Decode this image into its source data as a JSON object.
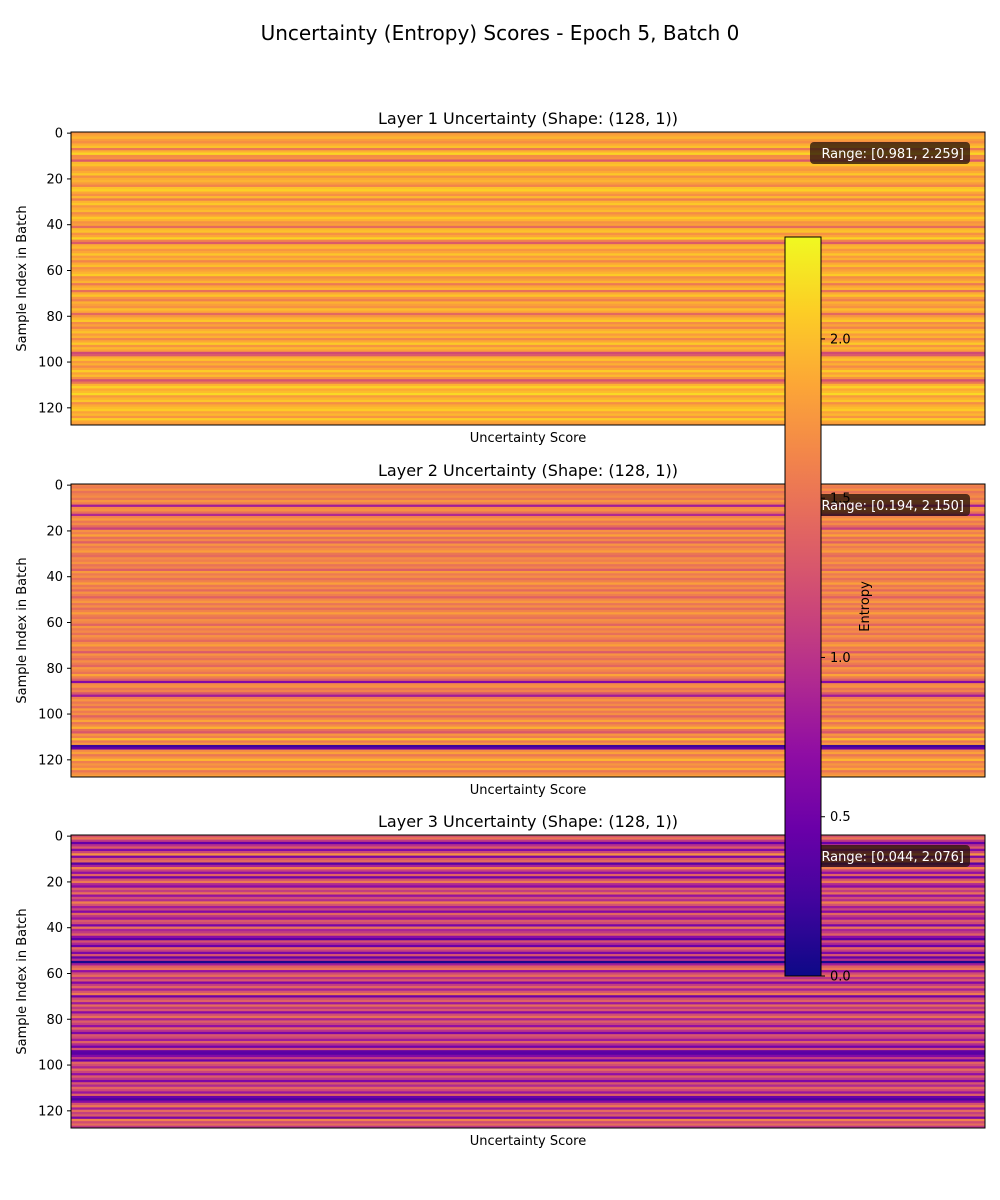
{
  "chart_data": {
    "type": "heatmap",
    "title": "Uncertainty (Entropy) Scores - Epoch 5, Batch 0",
    "colormap": "plasma",
    "colorbar": {
      "label": "Entropy",
      "vmin": 0.0,
      "vmax": 2.32,
      "ticks": [
        0.0,
        0.5,
        1.0,
        1.5,
        2.0
      ],
      "tick_labels": [
        "0.0",
        "0.5",
        "1.0",
        "1.5",
        "2.0"
      ]
    },
    "panels": [
      {
        "title": "Layer 1 Uncertainty (Shape: (128, 1))",
        "xlabel": "Uncertainty Score",
        "ylabel": "Sample Index in Batch",
        "ytick_values": [
          0,
          20,
          40,
          60,
          80,
          100,
          120
        ],
        "ytick_labels": [
          "0",
          "20",
          "40",
          "60",
          "80",
          "100",
          "120"
        ],
        "range_text": "Range: [0.981, 2.259]",
        "range": [
          0.981,
          2.259
        ],
        "n_rows": 128,
        "values": [
          1.74,
          1.85,
          1.95,
          1.79,
          1.7,
          1.89,
          2.01,
          1.53,
          1.92,
          2.12,
          1.67,
          1.72,
          1.31,
          1.96,
          2.02,
          1.81,
          1.75,
          1.88,
          2.05,
          1.69,
          1.88,
          1.93,
          1.78,
          1.62,
          2.01,
          2.1,
          1.86,
          1.71,
          1.96,
          1.57,
          1.93,
          2.05,
          1.75,
          1.89,
          1.98,
          1.68,
          1.83,
          2.06,
          1.93,
          1.72,
          1.8,
          1.44,
          1.95,
          2.02,
          1.71,
          1.85,
          2.12,
          1.61,
          1.33,
          1.9,
          1.97,
          1.74,
          1.85,
          2.04,
          1.78,
          1.91,
          1.63,
          1.87,
          2.0,
          1.71,
          1.82,
          1.93,
          2.07,
          1.68,
          1.79,
          1.94,
          1.55,
          1.85,
          1.97,
          1.47,
          1.88,
          2.03,
          1.76,
          1.59,
          1.92,
          1.81,
          1.72,
          1.99,
          1.86,
          1.42,
          1.75,
          1.93,
          2.05,
          1.68,
          1.83,
          1.61,
          1.9,
          2.02,
          1.78,
          1.92,
          1.64,
          1.87,
          2.06,
          1.73,
          1.95,
          1.8,
          1.19,
          1.31,
          1.88,
          2.01,
          1.76,
          1.91,
          1.66,
          1.85,
          2.09,
          1.82,
          1.97,
          1.72,
          1.25,
          1.53,
          1.93,
          2.11,
          1.86,
          1.98,
          2.15,
          1.77,
          1.92,
          2.04,
          1.69,
          1.88,
          1.99,
          2.07,
          1.83,
          1.95,
          1.73,
          2.09,
          1.86,
          1.79
        ]
      },
      {
        "title": "Layer 2 Uncertainty (Shape: (128, 1))",
        "xlabel": "Uncertainty Score",
        "ylabel": "Sample Index in Batch",
        "ytick_values": [
          0,
          20,
          40,
          60,
          80,
          100,
          120
        ],
        "ytick_labels": [
          "0",
          "20",
          "40",
          "60",
          "80",
          "100",
          "120"
        ],
        "range_text": "Range: [0.194, 2.150]",
        "range": [
          0.194,
          2.15
        ],
        "n_rows": 128,
        "values": [
          1.62,
          1.55,
          1.71,
          1.49,
          1.6,
          1.68,
          1.52,
          1.75,
          1.58,
          0.82,
          1.66,
          1.71,
          1.48,
          0.92,
          1.63,
          1.78,
          1.54,
          1.67,
          1.43,
          1.12,
          1.71,
          1.59,
          1.83,
          1.47,
          1.64,
          1.36,
          1.74,
          1.55,
          1.67,
          1.8,
          1.52,
          1.44,
          1.68,
          1.59,
          1.73,
          1.5,
          1.62,
          1.34,
          1.77,
          1.56,
          1.69,
          1.47,
          1.6,
          1.81,
          1.54,
          1.66,
          1.43,
          1.72,
          1.58,
          1.37,
          1.64,
          1.76,
          1.52,
          1.69,
          1.45,
          1.61,
          1.8,
          1.57,
          1.49,
          1.7,
          1.63,
          1.39,
          1.75,
          1.55,
          1.66,
          1.48,
          1.72,
          1.59,
          1.43,
          1.68,
          1.81,
          1.54,
          1.62,
          1.31,
          1.73,
          1.58,
          1.47,
          1.69,
          1.55,
          1.41,
          1.76,
          1.63,
          1.5,
          1.84,
          1.57,
          1.35,
          0.63,
          1.66,
          1.72,
          1.49,
          1.61,
          1.28,
          0.81,
          1.58,
          1.74,
          1.53,
          1.67,
          1.44,
          1.79,
          1.56,
          1.7,
          1.38,
          1.63,
          1.85,
          1.51,
          1.68,
          1.92,
          1.47,
          1.29,
          1.75,
          1.6,
          1.99,
          1.55,
          1.77,
          0.21,
          0.44,
          1.66,
          1.82,
          1.53,
          1.71,
          1.95,
          1.58,
          1.74,
          1.63,
          1.87,
          1.52,
          1.69,
          1.8
        ]
      },
      {
        "title": "Layer 3 Uncertainty (Shape: (128, 1))",
        "xlabel": "Uncertainty Score",
        "ylabel": "Sample Index in Batch",
        "ytick_values": [
          0,
          20,
          40,
          60,
          80,
          100,
          120
        ],
        "ytick_labels": [
          "0",
          "20",
          "40",
          "60",
          "80",
          "100",
          "120"
        ],
        "range_text": "Range: [0.044, 2.076]",
        "range": [
          0.044,
          2.076
        ],
        "n_rows": 128,
        "values": [
          1.25,
          1.52,
          1.05,
          0.44,
          0.98,
          1.31,
          0.62,
          1.15,
          1.71,
          0.57,
          1.28,
          1.45,
          0.36,
          0.88,
          1.62,
          1.12,
          0.71,
          1.39,
          0.52,
          1.21,
          1.55,
          0.93,
          0.67,
          1.33,
          1.08,
          1.47,
          0.74,
          1.22,
          0.95,
          1.58,
          1.26,
          0.81,
          1.14,
          0.63,
          1.41,
          1.02,
          0.77,
          1.3,
          1.18,
          0.55,
          1.49,
          0.89,
          1.06,
          1.36,
          0.69,
          0.38,
          1.24,
          0.91,
          0.47,
          1.43,
          1.11,
          0.58,
          1.27,
          0.44,
          0.97,
          0.06,
          0.83,
          1.35,
          1.52,
          0.72,
          1.19,
          1.44,
          0.98,
          1.3,
          0.61,
          1.09,
          1.4,
          0.84,
          1.26,
          1.55,
          0.49,
          1.17,
          1.37,
          0.79,
          1.45,
          1.04,
          1.29,
          0.66,
          1.21,
          1.48,
          0.87,
          1.34,
          1.12,
          0.72,
          1.42,
          1.01,
          0.58,
          1.28,
          1.16,
          0.81,
          1.37,
          0.93,
          0.52,
          1.24,
          0.41,
          0.36,
          0.62,
          1.08,
          0.47,
          1.39,
          1.21,
          0.88,
          1.46,
          1.14,
          0.71,
          1.33,
          1.05,
          0.59,
          1.27,
          0.92,
          1.41,
          1.18,
          0.77,
          1.36,
          0.49,
          0.28,
          0.66,
          1.25,
          1.53,
          0.83,
          1.44,
          1.1,
          1.32,
          0.57,
          1.6,
          1.21,
          1.45,
          1.02
        ]
      }
    ]
  }
}
